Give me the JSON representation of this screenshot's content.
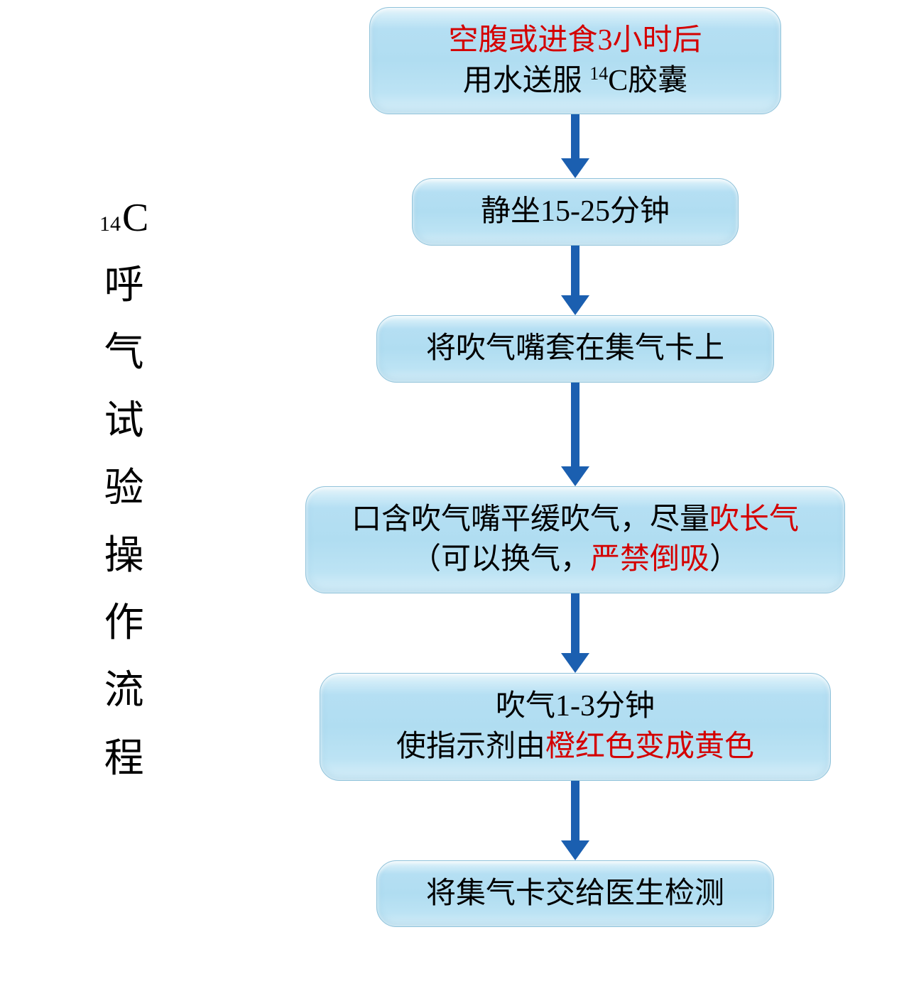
{
  "diagram": {
    "type": "flowchart",
    "title": {
      "sup": "14",
      "first_letter": "C",
      "chars": [
        "呼",
        "气",
        "试",
        "验",
        "操",
        "作",
        "流",
        "程"
      ],
      "fontsize": 56,
      "color": "#000000"
    },
    "node_style": {
      "fill_gradient_top": "#e8f5fb",
      "fill_gradient_mid": "#b0ddf1",
      "fill_gradient_bottom": "#d8eff9",
      "border_color": "#8fc2da",
      "border_radius": 28,
      "fontsize": 42,
      "text_color": "#000000",
      "emphasis_color": "#d40000"
    },
    "arrow_style": {
      "color": "#1b5fb0",
      "shaft_width": 12,
      "head_width": 40,
      "head_height": 28
    },
    "background_color": "#ffffff",
    "nodes": [
      {
        "id": "n1",
        "width_class": "w-580",
        "lines": [
          {
            "spans": [
              {
                "t": "空腹或进食3小时后",
                "red": true
              }
            ]
          },
          {
            "spans": [
              {
                "t": "用水送服 "
              },
              {
                "sup": "14"
              },
              {
                "t": "C胶囊"
              }
            ]
          }
        ],
        "arrow_after": {
          "shaft": 62
        }
      },
      {
        "id": "n2",
        "width_class": "w-460",
        "lines": [
          {
            "spans": [
              {
                "t": "静坐15-25分钟"
              }
            ]
          }
        ],
        "arrow_after": {
          "shaft": 70
        }
      },
      {
        "id": "n3",
        "width_class": "w-560",
        "lines": [
          {
            "spans": [
              {
                "t": "将吹气嘴套在集气卡上"
              }
            ]
          }
        ],
        "arrow_after": {
          "shaft": 118
        }
      },
      {
        "id": "n4",
        "width_class": "w-820",
        "lines": [
          {
            "spans": [
              {
                "t": "口含吹气嘴平缓吹气，尽量"
              },
              {
                "t": "吹长气",
                "red": true
              }
            ]
          },
          {
            "spans": [
              {
                "t": "（可以换气，"
              },
              {
                "t": "严禁倒吸",
                "red": true
              },
              {
                "t": "）"
              }
            ]
          }
        ],
        "arrow_after": {
          "shaft": 84
        }
      },
      {
        "id": "n5",
        "width_class": "w-720",
        "lines": [
          {
            "spans": [
              {
                "t": "吹气1-3分钟"
              }
            ]
          },
          {
            "spans": [
              {
                "t": "使指示剂由"
              },
              {
                "t": "橙红色变成黄色",
                "red": true
              }
            ]
          }
        ],
        "arrow_after": {
          "shaft": 84
        }
      },
      {
        "id": "n6",
        "width_class": "w-600",
        "lines": [
          {
            "spans": [
              {
                "t": "将集气卡交给医生检测"
              }
            ]
          }
        ],
        "arrow_after": null
      }
    ]
  }
}
